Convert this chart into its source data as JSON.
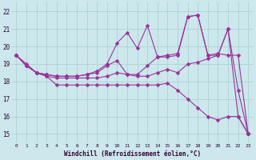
{
  "xlabel": "Windchill (Refroidissement éolien,°C)",
  "background_color": "#cce8ec",
  "line_color": "#993399",
  "markersize": 2.5,
  "xlim": [
    -0.5,
    23.5
  ],
  "ylim": [
    14.5,
    22.5
  ],
  "y_ticks": [
    15,
    16,
    17,
    18,
    19,
    20,
    21,
    22
  ],
  "x_ticks": [
    0,
    1,
    2,
    3,
    4,
    5,
    6,
    7,
    8,
    9,
    10,
    11,
    12,
    13,
    14,
    15,
    16,
    17,
    18,
    19,
    20,
    21,
    22,
    23
  ],
  "series": [
    [
      19.5,
      19.0,
      18.5,
      18.3,
      17.8,
      17.8,
      17.8,
      17.8,
      17.8,
      17.8,
      17.8,
      17.8,
      17.8,
      17.8,
      17.8,
      17.9,
      17.5,
      17.0,
      16.5,
      16.0,
      15.8,
      16.0,
      16.0,
      15.0
    ],
    [
      19.5,
      18.9,
      18.5,
      18.3,
      18.2,
      18.2,
      18.2,
      18.2,
      18.2,
      18.3,
      18.5,
      18.4,
      18.3,
      18.3,
      18.5,
      18.7,
      18.5,
      19.0,
      19.1,
      19.3,
      19.5,
      21.0,
      17.5,
      15.0
    ],
    [
      19.5,
      18.9,
      18.5,
      18.4,
      18.3,
      18.3,
      18.3,
      18.4,
      18.5,
      18.9,
      19.2,
      18.4,
      18.4,
      18.9,
      19.4,
      19.4,
      19.5,
      21.7,
      21.8,
      19.5,
      19.5,
      21.0,
      16.0,
      15.0
    ],
    [
      19.5,
      18.9,
      18.5,
      18.4,
      18.3,
      18.3,
      18.3,
      18.4,
      18.6,
      19.0,
      20.2,
      20.8,
      19.9,
      21.2,
      19.4,
      19.5,
      19.6,
      21.7,
      21.8,
      19.5,
      19.6,
      19.5,
      19.5,
      15.0
    ]
  ]
}
